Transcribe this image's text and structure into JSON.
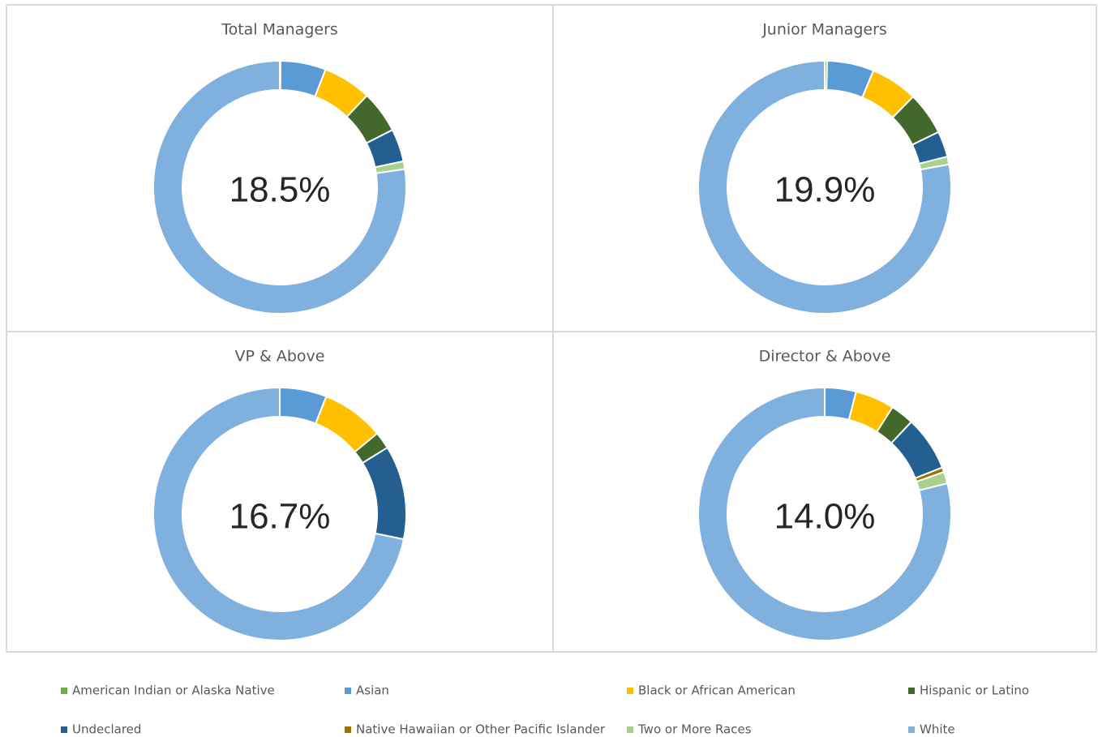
{
  "chart_data": [
    {
      "type": "pie",
      "title": "Total Managers",
      "center_label": "18.5%",
      "categories": [
        "American Indian or Alaska Native",
        "Asian",
        "Black or African American",
        "Hispanic or Latino",
        "Undeclared",
        "Native Hawaiian or Other Pacific Islander",
        "Two or More Races",
        "White"
      ],
      "colors": [
        "#70ad47",
        "#5b9bd5",
        "#ffc000",
        "#43682b",
        "#255e91",
        "#9e7000",
        "#a9d18e",
        "#7fb0de"
      ],
      "values": [
        0.1,
        5.8,
        6.2,
        5.4,
        4.2,
        0,
        1.0,
        77.3
      ]
    },
    {
      "type": "pie",
      "title": "Junior Managers",
      "center_label": "19.9%",
      "categories": [
        "American Indian or Alaska Native",
        "Asian",
        "Black or African American",
        "Hispanic or Latino",
        "Undeclared",
        "Native Hawaiian or Other Pacific Islander",
        "Two or More Races",
        "White"
      ],
      "colors": [
        "#70ad47",
        "#5b9bd5",
        "#ffc000",
        "#43682b",
        "#255e91",
        "#9e7000",
        "#a9d18e",
        "#7fb0de"
      ],
      "values": [
        0.3,
        6.0,
        6.0,
        5.5,
        3.3,
        0,
        1.0,
        77.9
      ]
    },
    {
      "type": "pie",
      "title": "VP & Above",
      "center_label": "16.7%",
      "categories": [
        "American Indian or Alaska Native",
        "Asian",
        "Black or African American",
        "Hispanic or Latino",
        "Undeclared",
        "Native Hawaiian or Other Pacific Islander",
        "Two or More Races",
        "White"
      ],
      "colors": [
        "#70ad47",
        "#5b9bd5",
        "#ffc000",
        "#43682b",
        "#255e91",
        "#9e7000",
        "#a9d18e",
        "#7fb0de"
      ],
      "values": [
        0,
        6.0,
        8.0,
        2.2,
        12.0,
        0,
        0,
        71.8
      ]
    },
    {
      "type": "pie",
      "title": "Director &  Above",
      "center_label": "14.0%",
      "categories": [
        "American Indian or Alaska Native",
        "Asian",
        "Black or African American",
        "Hispanic or Latino",
        "Undeclared",
        "Native Hawaiian or Other Pacific Islander",
        "Two or More Races",
        "White"
      ],
      "colors": [
        "#70ad47",
        "#5b9bd5",
        "#ffc000",
        "#43682b",
        "#255e91",
        "#9e7000",
        "#a9d18e",
        "#7fb0de"
      ],
      "values": [
        0,
        4.0,
        5.0,
        3.0,
        7.0,
        0.6,
        1.5,
        78.9
      ]
    }
  ]
}
